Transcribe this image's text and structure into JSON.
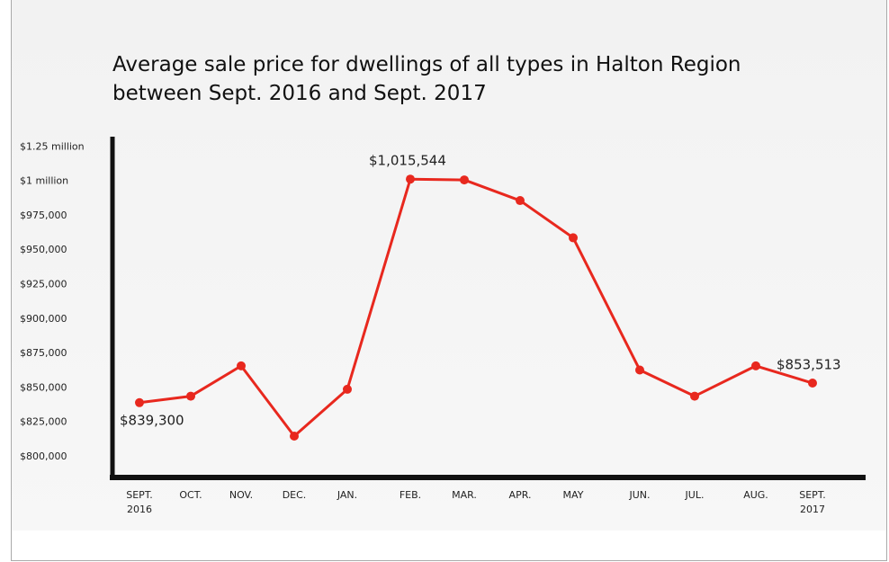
{
  "chart_data": {
    "type": "line",
    "title": "Average sale price for dwellings of all types in Halton Region between Sept. 2016 and Sept. 2017",
    "categories": [
      "SEPT.\n2016",
      "OCT.",
      "NOV.",
      "DEC.",
      "JAN.",
      "FEB.",
      "MAR.",
      "APR.",
      "MAY",
      "JUN.",
      "JUL.",
      "AUG.",
      "SEPT.\n2017"
    ],
    "series": [
      {
        "name": "Average sale price",
        "color": "#e8281e",
        "values": [
          839300,
          844000,
          866000,
          815000,
          849000,
          1015544,
          1010000,
          986000,
          959000,
          863000,
          844000,
          866000,
          853513
        ],
        "value_labels": [
          "$839,300",
          null,
          null,
          null,
          null,
          "$1,015,544",
          null,
          null,
          null,
          null,
          null,
          null,
          "$853,513"
        ]
      }
    ],
    "ylim": [
      800000,
      1250000
    ],
    "yticks": [
      {
        "value": 800000,
        "label": "$800,000"
      },
      {
        "value": 825000,
        "label": "$825,000"
      },
      {
        "value": 850000,
        "label": "$850,000"
      },
      {
        "value": 875000,
        "label": "$875,000"
      },
      {
        "value": 900000,
        "label": "$900,000"
      },
      {
        "value": 925000,
        "label": "$925,000"
      },
      {
        "value": 950000,
        "label": "$950,000"
      },
      {
        "value": 975000,
        "label": "$975,000"
      },
      {
        "value": 1000000,
        "label": "$1 million"
      },
      {
        "value": 1250000,
        "label": "$1.25 million"
      }
    ],
    "grid": false
  }
}
